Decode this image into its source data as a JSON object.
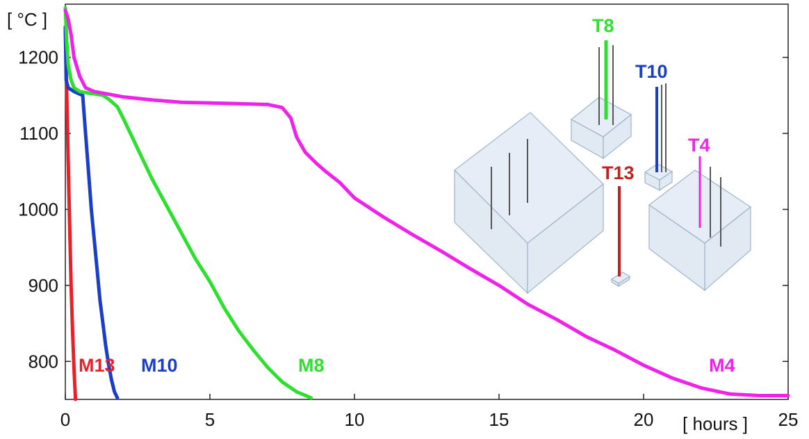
{
  "chart_data": {
    "type": "line",
    "title": "",
    "xlabel": "[ hours ]",
    "ylabel": "[ °C ]",
    "xlim": [
      0,
      25
    ],
    "ylim": [
      750,
      1270
    ],
    "xticks": [
      0,
      5,
      10,
      15,
      20,
      25
    ],
    "yticks": [
      800,
      900,
      1000,
      1100,
      1200
    ],
    "grid": false,
    "series": [
      {
        "name": "M13",
        "color": "#e8202a",
        "x": [
          0.0,
          0.05,
          0.1,
          0.15,
          0.2,
          0.25,
          0.3,
          0.35
        ],
        "y": [
          1240,
          1150,
          1060,
          980,
          900,
          840,
          790,
          750
        ]
      },
      {
        "name": "M10",
        "color": "#1a3ec8",
        "x": [
          0.0,
          0.03,
          0.1,
          0.3,
          0.6,
          0.7,
          0.8,
          0.9,
          1.0,
          1.1,
          1.2,
          1.3,
          1.4,
          1.5,
          1.6,
          1.7,
          1.8
        ],
        "y": [
          1240,
          1170,
          1160,
          1155,
          1150,
          1100,
          1050,
          1000,
          960,
          920,
          880,
          850,
          820,
          795,
          775,
          760,
          752
        ]
      },
      {
        "name": "M8",
        "color": "#2ee02e",
        "x": [
          0.0,
          0.05,
          0.1,
          0.2,
          0.3,
          0.5,
          0.8,
          1.0,
          1.3,
          1.5,
          1.8,
          2.0,
          2.5,
          3.0,
          3.5,
          4.0,
          4.5,
          5.0,
          5.5,
          6.0,
          6.5,
          7.0,
          7.5,
          8.0,
          8.5
        ],
        "y": [
          1265,
          1220,
          1190,
          1170,
          1160,
          1155,
          1153,
          1152,
          1150,
          1145,
          1135,
          1120,
          1080,
          1040,
          1005,
          970,
          935,
          905,
          870,
          840,
          815,
          792,
          773,
          760,
          752
        ]
      },
      {
        "name": "M4",
        "color": "#ee22e8",
        "x": [
          0.0,
          0.1,
          0.2,
          0.3,
          0.5,
          0.7,
          1.0,
          2.0,
          3.0,
          4.0,
          5.0,
          6.0,
          7.0,
          7.5,
          7.8,
          8.0,
          8.3,
          8.7,
          9.0,
          9.5,
          10.0,
          11.0,
          12.0,
          13.0,
          14.0,
          15.0,
          16.0,
          17.0,
          18.0,
          19.0,
          20.0,
          21.0,
          22.0,
          23.0,
          24.0,
          25.0
        ],
        "y": [
          1262,
          1250,
          1230,
          1200,
          1175,
          1160,
          1155,
          1148,
          1144,
          1141,
          1140,
          1139,
          1138,
          1134,
          1120,
          1095,
          1075,
          1060,
          1050,
          1035,
          1015,
          990,
          967,
          945,
          922,
          900,
          875,
          855,
          833,
          815,
          795,
          778,
          765,
          757,
          755,
          755
        ]
      }
    ],
    "annotations": {
      "curve_labels": [
        "M13",
        "M10",
        "M8",
        "M4"
      ],
      "inset_labels": [
        "T8",
        "T10",
        "T4",
        "T13"
      ]
    }
  }
}
